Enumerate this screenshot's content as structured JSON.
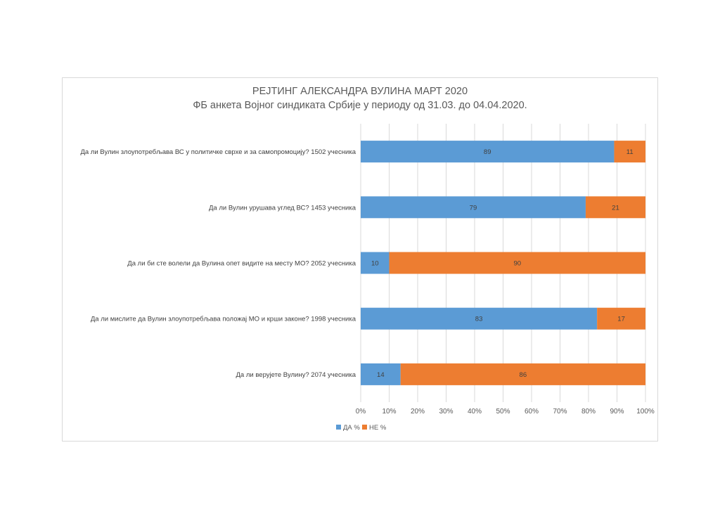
{
  "chart_data": {
    "type": "bar",
    "orientation": "horizontal",
    "stacked": true,
    "title": "РЕЈТИНГ АЛЕКСАНДРА ВУЛИНА МАРТ 2020",
    "subtitle": "ФБ анкета Војног синдиката Србије у периоду од 31.03. до 04.04.2020.",
    "categories": [
      "Да ли Вулин злоупотребљава ВС у политичке сврхе и за самопромоцију? 1502 учесника",
      "Да ли Вулин урушава углед ВС? 1453 учесника",
      "Да ли би сте волели да Вулина опет видите на месту МО? 2052 учесника",
      "Да ли мислите да Вулин злоупотребљава положај МО и крши законе? 1998 учесника",
      "Да ли верујете Вулину? 2074 учесника"
    ],
    "series": [
      {
        "name": "ДА %",
        "color": "#5b9bd5",
        "values": [
          89,
          79,
          10,
          83,
          14
        ]
      },
      {
        "name": "НЕ %",
        "color": "#ed7d31",
        "values": [
          11,
          21,
          90,
          17,
          86
        ]
      }
    ],
    "xlim": [
      0,
      100
    ],
    "xticks": [
      "0%",
      "10%",
      "20%",
      "30%",
      "40%",
      "50%",
      "60%",
      "70%",
      "80%",
      "90%",
      "100%"
    ],
    "grid": true,
    "legend": "bottom"
  }
}
